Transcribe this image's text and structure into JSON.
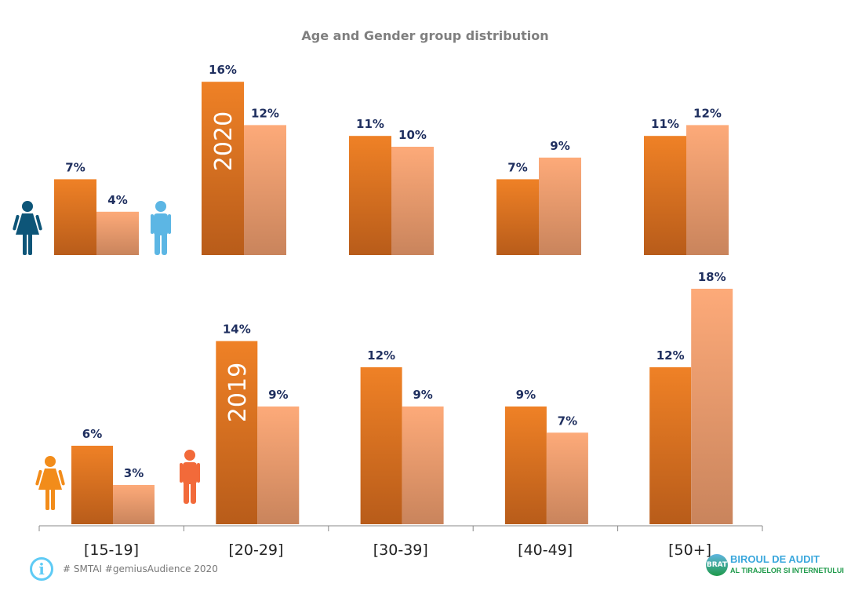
{
  "chart_data": [
    {
      "type": "bar",
      "title": "Age and Gender group distribution",
      "panel_label": "2020",
      "categories": [
        "[15-19]",
        "[20-29]",
        "[30-39]",
        "[40-49]",
        "[50+]"
      ],
      "series": [
        {
          "values": [
            7,
            16,
            11,
            7,
            11
          ],
          "color": "#e87722"
        },
        {
          "values": [
            4,
            12,
            10,
            9,
            12
          ],
          "color": "#fba877"
        }
      ],
      "unit": "%",
      "ylim": [
        0,
        16
      ],
      "grid": false,
      "icons": [
        "female-icon",
        "male-icon"
      ],
      "icon_colors": [
        "#0d5578",
        "#5cb6e4"
      ]
    },
    {
      "type": "bar",
      "panel_label": "2019",
      "categories": [
        "[15-19]",
        "[20-29]",
        "[30-39]",
        "[40-49]",
        "[50+]"
      ],
      "series": [
        {
          "values": [
            6,
            14,
            12,
            9,
            12
          ],
          "color": "#e87722"
        },
        {
          "values": [
            3,
            9,
            9,
            7,
            18
          ],
          "color": "#fba877"
        }
      ],
      "unit": "%",
      "ylim": [
        0,
        18
      ],
      "grid": false,
      "icons": [
        "female-icon",
        "male-icon"
      ],
      "icon_colors": [
        "#f28c1a",
        "#f26a3a"
      ]
    }
  ],
  "footer": {
    "text": "# SMTAI #gemiusAudience 2020",
    "info_icon": "info-icon"
  },
  "logo": {
    "name": "BRAT",
    "line1": "BIROUL DE AUDIT",
    "line2": "AL TIRAJELOR SI INTERNETULUI"
  }
}
